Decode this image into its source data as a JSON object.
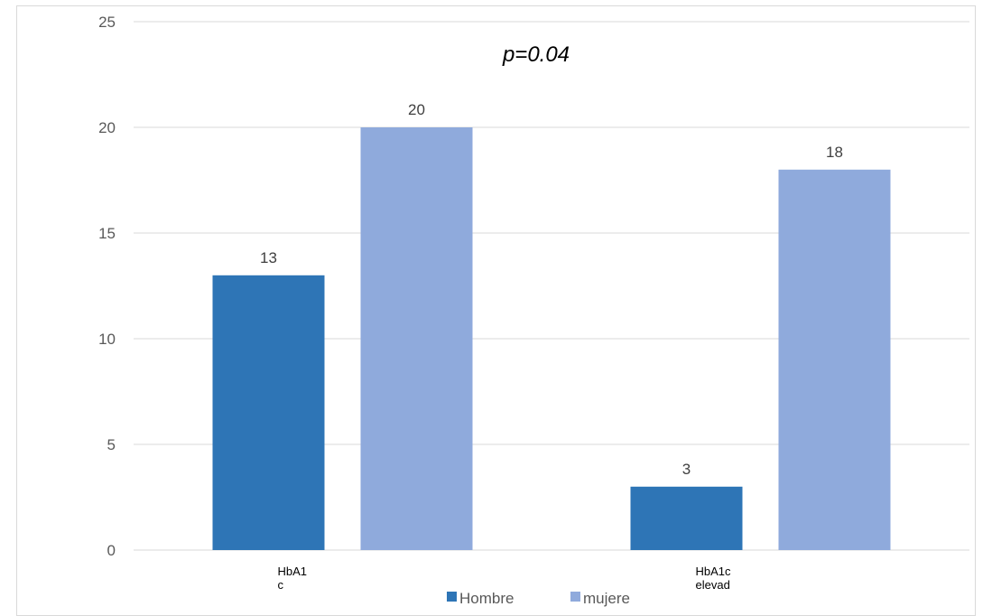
{
  "chart_data": {
    "type": "bar",
    "title": "p=0.04",
    "categories": [
      [
        "HbA1",
        "c"
      ],
      [
        "HbA1c",
        "elevad"
      ]
    ],
    "series": [
      {
        "name": "Hombre",
        "values": [
          13,
          3
        ],
        "color": "#2e75b6"
      },
      {
        "name": "mujere",
        "values": [
          20,
          18
        ],
        "color": "#8faadc"
      }
    ],
    "yticks": [
      "0",
      "5",
      "10",
      "15",
      "20",
      "25"
    ],
    "ylim": [
      0,
      25
    ],
    "grid": true,
    "legend": "bottom"
  }
}
